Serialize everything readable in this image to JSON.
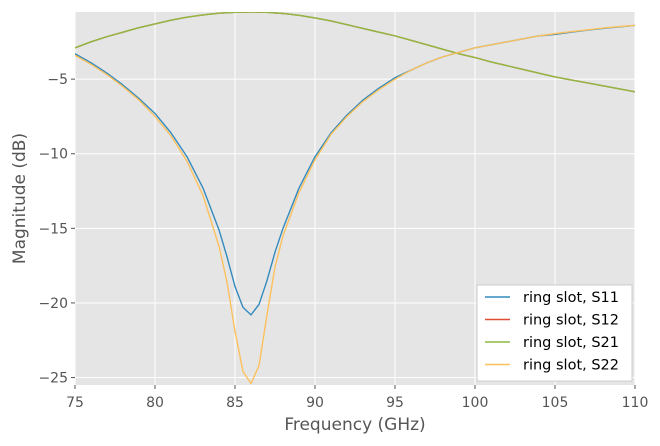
{
  "chart_data": {
    "type": "line",
    "title": "",
    "xlabel": "Frequency (GHz)",
    "ylabel": "Magnitude (dB)",
    "xlim": [
      75,
      110
    ],
    "ylim": [
      -25.5,
      -0.5
    ],
    "xticks": [
      75,
      80,
      85,
      90,
      95,
      100,
      105,
      110
    ],
    "yticks": [
      -5,
      -10,
      -15,
      -20,
      -25
    ],
    "xtick_labels": [
      "75",
      "80",
      "85",
      "90",
      "95",
      "100",
      "105",
      "110"
    ],
    "ytick_labels": [
      "−5",
      "−10",
      "−15",
      "−20",
      "−25"
    ],
    "grid": true,
    "legend_position": "lower-right",
    "series": [
      {
        "name": "ring slot, S11",
        "color": "#348ABD",
        "x": [
          75,
          76,
          77,
          78,
          79,
          80,
          81,
          82,
          83,
          84,
          84.5,
          85,
          85.5,
          86,
          86.5,
          87,
          87.5,
          88,
          89,
          90,
          91,
          92,
          93,
          94,
          95,
          96,
          97,
          98,
          99,
          100,
          101,
          102,
          103,
          104,
          105,
          106,
          107,
          108,
          109,
          110
        ],
        "y": [
          -3.3,
          -3.9,
          -4.6,
          -5.4,
          -6.3,
          -7.3,
          -8.6,
          -10.2,
          -12.3,
          -15.1,
          -16.9,
          -18.9,
          -20.3,
          -20.8,
          -20.1,
          -18.5,
          -16.6,
          -15.0,
          -12.3,
          -10.2,
          -8.6,
          -7.4,
          -6.4,
          -5.6,
          -4.9,
          -4.4,
          -3.9,
          -3.5,
          -3.2,
          -2.9,
          -2.7,
          -2.5,
          -2.3,
          -2.1,
          -2.0,
          -1.85,
          -1.72,
          -1.6,
          -1.5,
          -1.4
        ]
      },
      {
        "name": "ring slot, S12",
        "color": "#E24A33",
        "x": [
          75,
          76,
          77,
          78,
          79,
          80,
          81,
          82,
          83,
          84,
          85,
          86,
          87,
          88,
          89,
          90,
          91,
          92,
          93,
          94,
          95,
          96,
          97,
          98,
          99,
          100,
          101,
          102,
          103,
          104,
          105,
          106,
          107,
          108,
          109,
          110
        ],
        "y": [
          -2.9,
          -2.5,
          -2.15,
          -1.85,
          -1.55,
          -1.3,
          -1.05,
          -0.85,
          -0.7,
          -0.58,
          -0.52,
          -0.5,
          -0.52,
          -0.6,
          -0.72,
          -0.9,
          -1.1,
          -1.35,
          -1.6,
          -1.85,
          -2.1,
          -2.4,
          -2.7,
          -3.0,
          -3.3,
          -3.55,
          -3.85,
          -4.1,
          -4.35,
          -4.6,
          -4.85,
          -5.05,
          -5.25,
          -5.45,
          -5.65,
          -5.85
        ]
      },
      {
        "name": "ring slot, S21",
        "color": "#8EBA42",
        "x": [
          75,
          76,
          77,
          78,
          79,
          80,
          81,
          82,
          83,
          84,
          85,
          86,
          87,
          88,
          89,
          90,
          91,
          92,
          93,
          94,
          95,
          96,
          97,
          98,
          99,
          100,
          101,
          102,
          103,
          104,
          105,
          106,
          107,
          108,
          109,
          110
        ],
        "y": [
          -2.9,
          -2.5,
          -2.15,
          -1.85,
          -1.55,
          -1.3,
          -1.05,
          -0.85,
          -0.7,
          -0.58,
          -0.52,
          -0.5,
          -0.52,
          -0.6,
          -0.72,
          -0.9,
          -1.1,
          -1.35,
          -1.6,
          -1.85,
          -2.1,
          -2.4,
          -2.7,
          -3.0,
          -3.3,
          -3.55,
          -3.85,
          -4.1,
          -4.35,
          -4.6,
          -4.85,
          -5.05,
          -5.25,
          -5.45,
          -5.65,
          -5.85
        ]
      },
      {
        "name": "ring slot, S22",
        "color": "#FBC15E",
        "x": [
          75,
          76,
          77,
          78,
          79,
          80,
          81,
          82,
          83,
          84,
          84.5,
          85,
          85.5,
          86,
          86.5,
          87,
          87.5,
          88,
          89,
          90,
          91,
          92,
          93,
          94,
          95,
          96,
          97,
          98,
          99,
          100,
          101,
          102,
          103,
          104,
          105,
          106,
          107,
          108,
          109,
          110
        ],
        "y": [
          -3.4,
          -4.0,
          -4.7,
          -5.5,
          -6.4,
          -7.5,
          -8.8,
          -10.5,
          -12.8,
          -16.2,
          -18.6,
          -21.9,
          -24.6,
          -25.4,
          -24.2,
          -20.8,
          -17.6,
          -15.5,
          -12.6,
          -10.4,
          -8.7,
          -7.5,
          -6.5,
          -5.7,
          -5.0,
          -4.4,
          -3.9,
          -3.5,
          -3.2,
          -2.9,
          -2.7,
          -2.5,
          -2.3,
          -2.1,
          -1.95,
          -1.82,
          -1.7,
          -1.58,
          -1.48,
          -1.4
        ]
      }
    ]
  }
}
